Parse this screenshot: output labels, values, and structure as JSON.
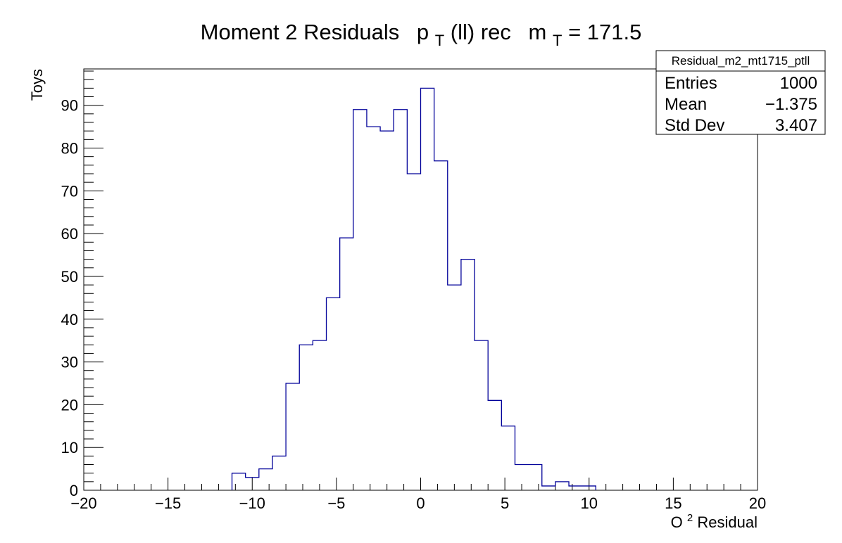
{
  "chart_data": {
    "type": "histogram",
    "title": {
      "main": "Moment 2 Residuals",
      "p": "p",
      "p_sub": "T",
      "p_rest": "(ll) rec",
      "m": "m",
      "m_sub": "T",
      "m_rest": " = 171.5"
    },
    "xlabel": {
      "base": "O",
      "sup": "2",
      "rest": " Residual"
    },
    "ylabel": "Toys",
    "xlim": [
      -20,
      20
    ],
    "ylim": [
      0,
      98.5
    ],
    "x_ticks": [
      -20,
      -15,
      -10,
      -5,
      0,
      5,
      10,
      15,
      20
    ],
    "x_tick_labels": [
      "−20",
      "−15",
      "−10",
      "−5",
      "0",
      "5",
      "10",
      "15",
      "20"
    ],
    "y_ticks": [
      0,
      10,
      20,
      30,
      40,
      50,
      60,
      70,
      80,
      90
    ],
    "y_tick_labels": [
      "0",
      "10",
      "20",
      "30",
      "40",
      "50",
      "60",
      "70",
      "80",
      "90"
    ],
    "bin_edges": [
      -11.2,
      -10.4,
      -9.6,
      -8.8,
      -8.0,
      -7.2,
      -6.4,
      -5.6,
      -4.8,
      -4.0,
      -3.2,
      -2.4,
      -1.6,
      -0.8,
      0.0,
      0.8,
      1.6,
      2.4,
      3.2,
      4.0,
      4.8,
      5.6,
      6.4,
      7.2,
      8.0,
      8.8,
      9.6,
      10.4
    ],
    "values": [
      4,
      3,
      5,
      8,
      25,
      34,
      35,
      45,
      59,
      89,
      85,
      84,
      89,
      74,
      94,
      77,
      48,
      54,
      35,
      21,
      15,
      6,
      6,
      1,
      2,
      1,
      1
    ],
    "line_color": "#000099",
    "stats_box": {
      "name": "Residual_m2_mt1715_ptll",
      "rows": [
        {
          "label": "Entries",
          "value": "1000"
        },
        {
          "label": "Mean",
          "value": "−1.375"
        },
        {
          "label": "Std Dev",
          "value": "3.407"
        }
      ]
    }
  }
}
